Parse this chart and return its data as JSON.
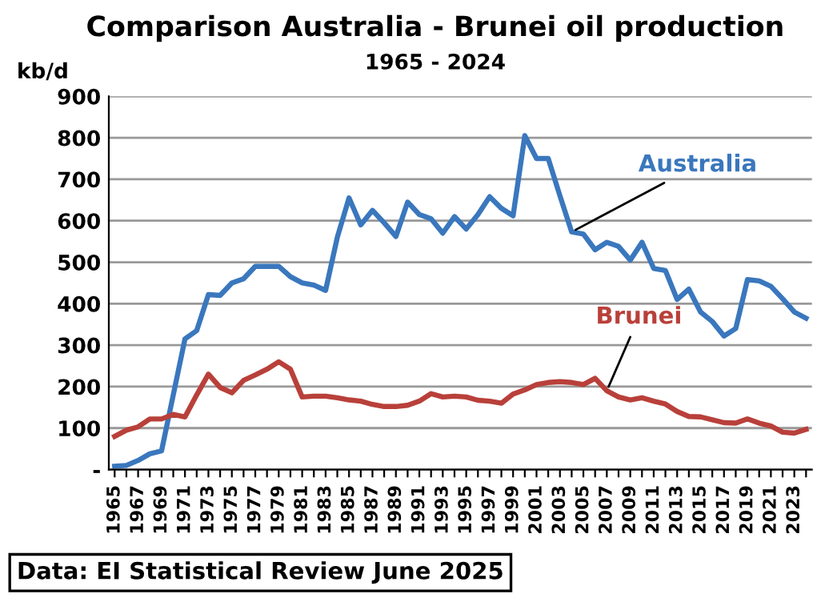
{
  "chart_data": {
    "type": "line",
    "title": "Comparison Australia - Brunei oil production",
    "subtitle": "1965 - 2024",
    "ylabel": "kb/d",
    "categories": [
      "1965",
      null,
      "1967",
      null,
      "1969",
      null,
      "1971",
      null,
      "1973",
      null,
      "1975",
      null,
      "1977",
      null,
      "1979",
      null,
      "1981",
      null,
      "1983",
      null,
      "1985",
      null,
      "1987",
      null,
      "1989",
      null,
      "1991",
      null,
      "1993",
      null,
      "1995",
      null,
      "1997",
      null,
      "1999",
      null,
      "2001",
      null,
      "2003",
      null,
      "2005",
      null,
      "2007",
      null,
      "2009",
      null,
      "2011",
      null,
      "2013",
      null,
      "2015",
      null,
      "2017",
      null,
      "2019",
      null,
      "2021",
      null,
      "2023",
      null
    ],
    "series": [
      {
        "name": "Australia",
        "color": "#3a77bd",
        "values": [
          8,
          10,
          22,
          38,
          45,
          180,
          315,
          335,
          422,
          420,
          450,
          460,
          490,
          490,
          490,
          465,
          450,
          445,
          432,
          560,
          655,
          590,
          625,
          595,
          562,
          645,
          615,
          605,
          570,
          610,
          580,
          615,
          658,
          630,
          612,
          805,
          750,
          750,
          660,
          573,
          568,
          530,
          548,
          538,
          505,
          548,
          485,
          480,
          410,
          435,
          380,
          357,
          322,
          340,
          458,
          455,
          442,
          412,
          380,
          365
        ]
      },
      {
        "name": "Brunei",
        "color": "#b9403a",
        "values": [
          80,
          95,
          103,
          122,
          122,
          133,
          127,
          180,
          230,
          198,
          185,
          215,
          228,
          242,
          260,
          242,
          175,
          177,
          177,
          173,
          168,
          165,
          157,
          152,
          152,
          155,
          165,
          183,
          175,
          177,
          175,
          167,
          165,
          160,
          182,
          192,
          205,
          210,
          212,
          210,
          205,
          220,
          190,
          175,
          168,
          173,
          165,
          158,
          140,
          128,
          127,
          120,
          113,
          112,
          122,
          112,
          105,
          90,
          88,
          97
        ]
      }
    ],
    "ylim": [
      0,
      900
    ],
    "yticks": [
      {
        "value": 0,
        "label": "-"
      },
      100,
      200,
      300,
      400,
      500,
      600,
      700,
      800,
      900
    ],
    "grid": "y",
    "legend": false,
    "marker": "none",
    "line_style": "solid",
    "annotations": [
      "Data: EI Statistical Review June 2025"
    ]
  }
}
